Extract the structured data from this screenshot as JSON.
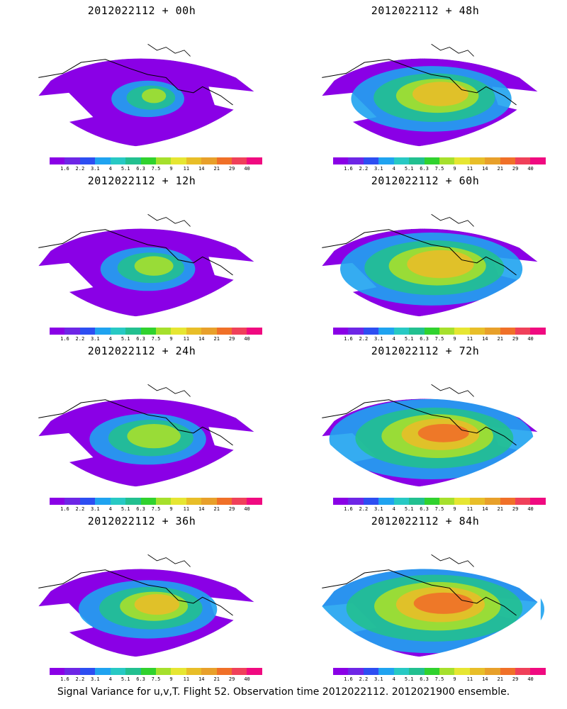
{
  "palette": [
    "#8a00e6",
    "#6e26e6",
    "#2d4ef2",
    "#1fa3f0",
    "#27c9c4",
    "#22c090",
    "#30d22e",
    "#a6e02c",
    "#e6e632",
    "#e8be28",
    "#e8a02a",
    "#f07028",
    "#f0405a",
    "#f00a80"
  ],
  "colorbar_labels": [
    "1.6",
    "2.2",
    "3.1",
    "4",
    "5.1",
    "6.3",
    "7.5",
    "9",
    "11",
    "14",
    "21",
    "29",
    "40"
  ],
  "panels": [
    {
      "title": "2012022112 + 00h",
      "level": 0
    },
    {
      "title": "2012022112 + 48h",
      "level": 4
    },
    {
      "title": "2012022112 + 12h",
      "level": 1
    },
    {
      "title": "2012022112 + 60h",
      "level": 5
    },
    {
      "title": "2012022112 + 24h",
      "level": 2
    },
    {
      "title": "2012022112 + 72h",
      "level": 6
    },
    {
      "title": "2012022112 + 36h",
      "level": 3
    },
    {
      "title": "2012022112 + 84h",
      "level": 7
    }
  ],
  "footer": "Signal Variance for u,v,T. Flight 52. Observation time 2012022112. 2012021900 ensemble."
}
